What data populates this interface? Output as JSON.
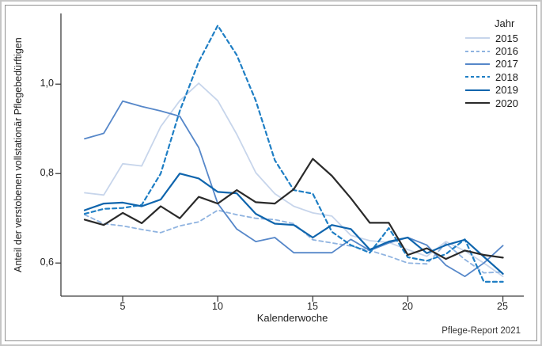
{
  "caption": "Pflege-Report 2021",
  "chart_data": {
    "type": "line",
    "title": "",
    "xlabel": "Kalenderwoche",
    "ylabel": "Anteil der verstobenen vollstationär Pflegebedürftigen",
    "legend_title": "Jahr",
    "legend_position": "top-right",
    "grid": false,
    "xlim": [
      1.75,
      26.1
    ],
    "ylim": [
      0.526,
      1.158
    ],
    "x_ticks": [
      5,
      10,
      15,
      20,
      25
    ],
    "x_tick_labels": [
      "5",
      "10",
      "15",
      "20",
      "25"
    ],
    "y_ticks": [
      0.6,
      0.8,
      1.0
    ],
    "y_tick_labels": [
      "0,6",
      "0,8",
      "1,0"
    ],
    "axis_color": "#3d3d3d",
    "x": [
      3,
      4,
      5,
      6,
      7,
      8,
      9,
      10,
      11,
      12,
      13,
      14,
      15,
      16,
      17,
      18,
      19,
      20,
      21,
      22,
      23,
      24,
      25
    ],
    "series": [
      {
        "name": "2015",
        "color": "#c7d5eb",
        "dashed": false,
        "width": 1.8,
        "values": [
          0.757,
          0.752,
          0.822,
          0.817,
          0.905,
          0.963,
          1.002,
          0.963,
          0.888,
          0.802,
          0.755,
          0.727,
          0.712,
          0.705,
          0.662,
          0.65,
          0.646,
          0.63,
          0.615,
          0.648,
          0.627,
          0.6,
          0.57
        ]
      },
      {
        "name": "2016",
        "color": "#8fb3e0",
        "dashed": true,
        "width": 1.8,
        "values": [
          0.708,
          0.688,
          0.683,
          0.675,
          0.668,
          0.683,
          0.692,
          0.718,
          0.708,
          0.7,
          0.697,
          0.688,
          0.652,
          0.645,
          0.638,
          0.628,
          0.615,
          0.6,
          0.598,
          0.644,
          0.608,
          0.578,
          0.58
        ]
      },
      {
        "name": "2017",
        "color": "#5687c9",
        "dashed": false,
        "width": 1.8,
        "values": [
          0.878,
          0.89,
          0.962,
          0.95,
          0.94,
          0.928,
          0.858,
          0.733,
          0.676,
          0.648,
          0.657,
          0.623,
          0.623,
          0.623,
          0.653,
          0.628,
          0.645,
          0.657,
          0.64,
          0.595,
          0.57,
          0.6,
          0.639
        ]
      },
      {
        "name": "2018",
        "color": "#1e7ec4",
        "dashed": true,
        "width": 2.2,
        "values": [
          0.71,
          0.721,
          0.723,
          0.73,
          0.8,
          0.94,
          1.05,
          1.131,
          1.065,
          0.963,
          0.83,
          0.763,
          0.755,
          0.67,
          0.64,
          0.623,
          0.678,
          0.613,
          0.605,
          0.62,
          0.653,
          0.558,
          0.558
        ]
      },
      {
        "name": "2019",
        "color": "#0f65ad",
        "dashed": false,
        "width": 2.2,
        "values": [
          0.718,
          0.733,
          0.735,
          0.727,
          0.742,
          0.8,
          0.789,
          0.759,
          0.756,
          0.71,
          0.688,
          0.685,
          0.657,
          0.685,
          0.676,
          0.63,
          0.648,
          0.657,
          0.622,
          0.64,
          0.652,
          0.614,
          0.576
        ]
      },
      {
        "name": "2020",
        "color": "#2a2a2a",
        "dashed": false,
        "width": 2.2,
        "values": [
          0.697,
          0.685,
          0.712,
          0.689,
          0.727,
          0.7,
          0.748,
          0.733,
          0.763,
          0.736,
          0.733,
          0.765,
          0.833,
          0.795,
          0.745,
          0.69,
          0.69,
          0.618,
          0.633,
          0.609,
          0.628,
          0.618,
          0.612
        ]
      }
    ]
  }
}
